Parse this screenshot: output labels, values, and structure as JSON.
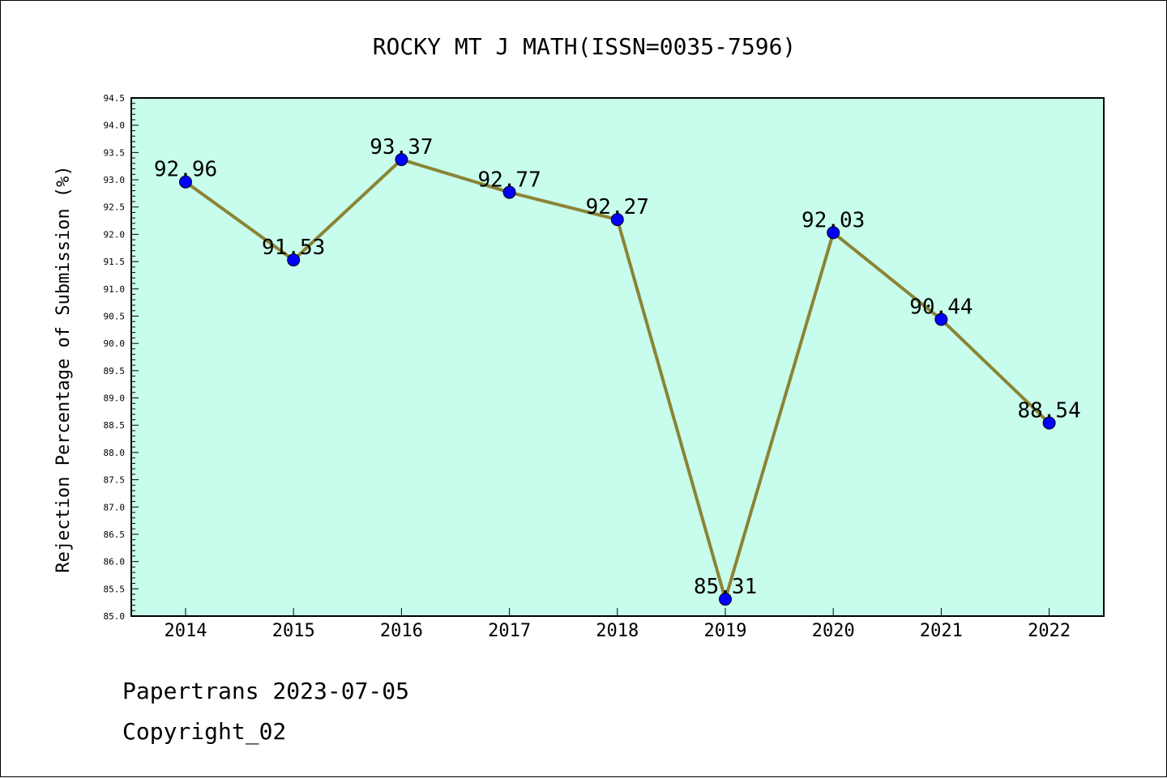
{
  "chart_data": {
    "type": "line",
    "title": "ROCKY MT J MATH(ISSN=0035-7596)",
    "ylabel": "Rejection Percentage of Submission (%)",
    "xlabel": "",
    "categories": [
      "2014",
      "2015",
      "2016",
      "2017",
      "2018",
      "2019",
      "2020",
      "2021",
      "2022"
    ],
    "series": [
      {
        "values": [
          92.96,
          91.53,
          93.37,
          92.77,
          92.27,
          85.31,
          92.03,
          90.44,
          88.54
        ]
      }
    ],
    "data_labels": [
      "92.96",
      "91.53",
      "93.37",
      "92.77",
      "92.27",
      "85.31",
      "92.03",
      "90.44",
      "88.54"
    ],
    "ylim": [
      85.0,
      94.5
    ],
    "yticks": [
      "85.0",
      "85.5",
      "86.0",
      "86.5",
      "87.0",
      "87.5",
      "88.0",
      "88.5",
      "89.0",
      "89.5",
      "90.0",
      "90.5",
      "91.0",
      "91.5",
      "92.0",
      "92.5",
      "93.0",
      "93.5",
      "94.0",
      "94.5"
    ],
    "grid": false,
    "colors": {
      "plot_background": "#c8fcec",
      "line": "#8b8435",
      "marker": "#0000ff"
    }
  },
  "footer": {
    "line1": "Papertrans 2023-07-05",
    "line2": "Copyright_02"
  }
}
